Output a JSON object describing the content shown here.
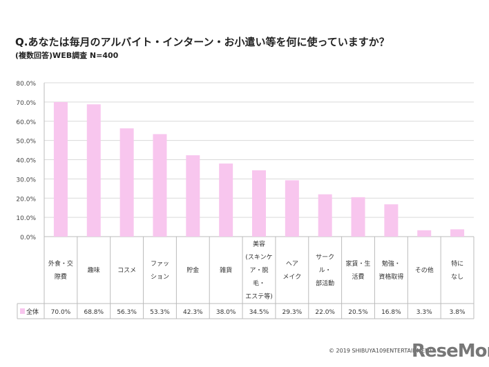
{
  "title": "Q.あなたは毎月のアルバイト・インターン・お小遣い等を何に使っていますか？",
  "subtitle": "(複数回答)WEB調査 N=400",
  "copyright": "© 2019 SHIBUYA109ENTERTAINMENT",
  "logo": "ReseMom",
  "colors": {
    "bar": "#f8c6ee",
    "grid": "#d9d9d9"
  },
  "chart_data": {
    "type": "bar",
    "title": "Q.あなたは毎月のアルバイト・インターン・お小遣い等を何に使っていますか？",
    "categories": [
      "外食・交\n際費",
      "趣味",
      "コスメ",
      "ファッ\nション",
      "貯金",
      "雑貨",
      "美容\n(スキンケ\nア・脱\n毛・\nエステ等)",
      "ヘア\nメイク",
      "サーク\nル・\n部活動",
      "家賃・生\n活費",
      "勉強・\n資格取得",
      "その他",
      "特に\nなし"
    ],
    "series": [
      {
        "name": "全体",
        "values": [
          70.0,
          68.8,
          56.3,
          53.3,
          42.3,
          38.0,
          34.5,
          29.3,
          22.0,
          20.5,
          16.8,
          3.3,
          3.8
        ],
        "labels": [
          "70.0%",
          "68.8%",
          "56.3%",
          "53.3%",
          "42.3%",
          "38.0%",
          "34.5%",
          "29.3%",
          "22.0%",
          "20.5%",
          "16.8%",
          "3.3%",
          "3.8%"
        ]
      }
    ],
    "yticks": [
      "0.0%",
      "10.0%",
      "20.0%",
      "30.0%",
      "40.0%",
      "50.0%",
      "60.0%",
      "70.0%",
      "80.0%"
    ],
    "ylim": [
      0,
      80
    ],
    "grid": true,
    "legend": "data-table"
  }
}
